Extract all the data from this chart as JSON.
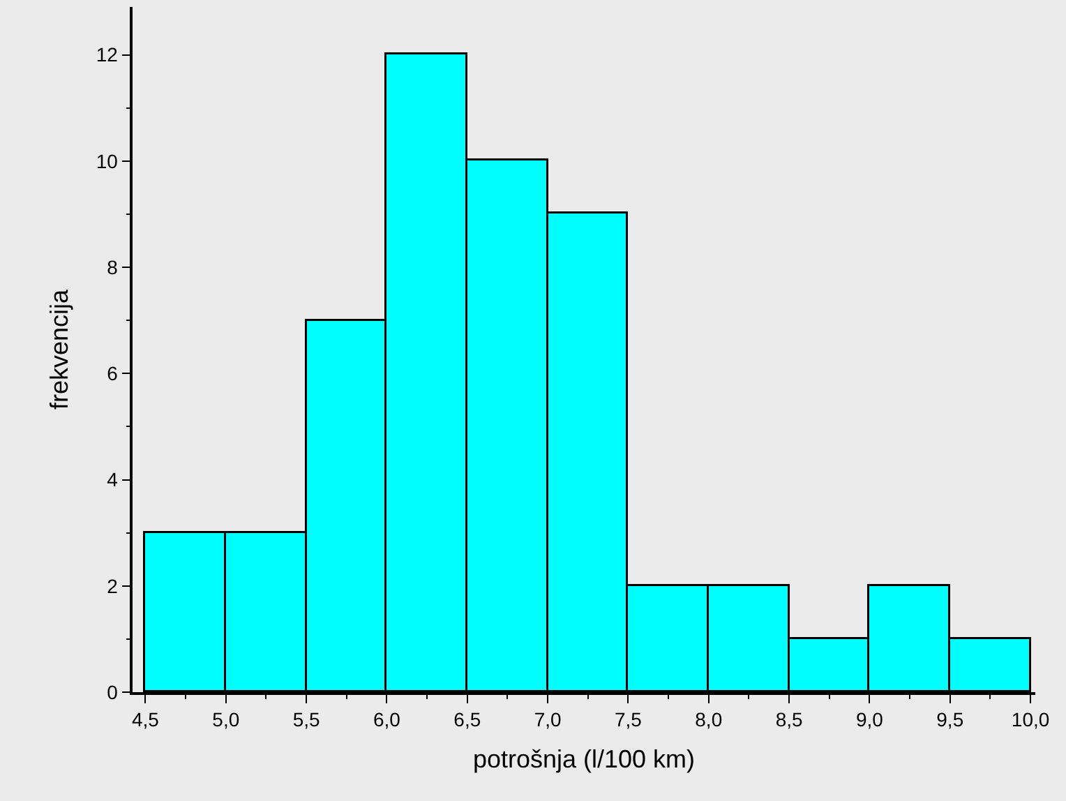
{
  "chart_data": {
    "type": "histogram",
    "xlabel": "potrošnja (l/100 km)",
    "ylabel": "frekvencija",
    "bins": [
      4.5,
      5.0,
      5.5,
      6.0,
      6.5,
      7.0,
      7.5,
      8.0,
      8.5,
      9.0,
      9.5,
      10.0
    ],
    "values": [
      3,
      3,
      7,
      12,
      10,
      9,
      2,
      2,
      1,
      2,
      1
    ],
    "color": "#00ffff",
    "xlim": [
      4.42,
      10.03
    ],
    "ylim": [
      0,
      12.9
    ],
    "xticks": [
      {
        "value": 4.5,
        "label": "4,5"
      },
      {
        "value": 5.0,
        "label": "5,0"
      },
      {
        "value": 5.5,
        "label": "5,5"
      },
      {
        "value": 6.0,
        "label": "6,0"
      },
      {
        "value": 6.5,
        "label": "6,5"
      },
      {
        "value": 7.0,
        "label": "7,0"
      },
      {
        "value": 7.5,
        "label": "7,5"
      },
      {
        "value": 8.0,
        "label": "8,0"
      },
      {
        "value": 8.5,
        "label": "8,5"
      },
      {
        "value": 9.0,
        "label": "9,0"
      },
      {
        "value": 9.5,
        "label": "9,5"
      },
      {
        "value": 10.0,
        "label": "10,0"
      }
    ],
    "yticks": [
      0,
      2,
      4,
      6,
      8,
      10,
      12
    ],
    "grid": false
  }
}
